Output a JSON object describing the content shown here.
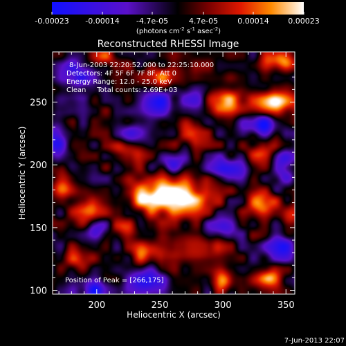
{
  "colorbar": {
    "ticks": [
      "-0.00023",
      "-0.00014",
      "-4.7e-05",
      "4.7e-05",
      "0.00014",
      "0.00023"
    ],
    "unit_main": "(photons cm",
    "unit_exp1": "-2",
    "unit_mid": " s",
    "unit_exp2": "-1",
    "unit_mid2": " asec",
    "unit_exp3": "-2",
    "unit_end": ")",
    "stops": [
      "#1010ff",
      "#5a10c8",
      "#000000",
      "#780000",
      "#e01800",
      "#ff8a00",
      "#ffffff"
    ]
  },
  "chart_data": {
    "type": "heatmap",
    "title": "Reconstructed RHESSI Image",
    "xlabel": "Heliocentric X (arcsec)",
    "ylabel": "Heliocentric Y (arcsec)",
    "xlim": [
      165,
      357
    ],
    "ylim": [
      97,
      290
    ],
    "xticks": [
      200,
      250,
      300,
      350
    ],
    "yticks": [
      100,
      150,
      200,
      250
    ],
    "value_range": [
      -0.00023,
      0.00023
    ],
    "peak": [
      266,
      175
    ],
    "blobs": [
      {
        "x": 266,
        "y": 175,
        "amp": 1.0,
        "sx": 16,
        "sy": 10
      },
      {
        "x": 240,
        "y": 176,
        "amp": 0.75,
        "sx": 12,
        "sy": 9
      },
      {
        "x": 225,
        "y": 210,
        "amp": 0.55,
        "sx": 10,
        "sy": 7
      },
      {
        "x": 192,
        "y": 165,
        "amp": 0.7,
        "sx": 9,
        "sy": 8
      },
      {
        "x": 173,
        "y": 185,
        "amp": 0.55,
        "sx": 6,
        "sy": 9
      },
      {
        "x": 300,
        "y": 252,
        "amp": 0.9,
        "sx": 12,
        "sy": 7
      },
      {
        "x": 340,
        "y": 250,
        "amp": 0.85,
        "sx": 12,
        "sy": 7
      },
      {
        "x": 345,
        "y": 285,
        "amp": 0.85,
        "sx": 9,
        "sy": 6
      },
      {
        "x": 330,
        "y": 170,
        "amp": 0.8,
        "sx": 8,
        "sy": 7
      },
      {
        "x": 330,
        "y": 210,
        "amp": 0.55,
        "sx": 9,
        "sy": 7
      },
      {
        "x": 353,
        "y": 160,
        "amp": 0.55,
        "sx": 5,
        "sy": 7
      },
      {
        "x": 278,
        "y": 135,
        "amp": 0.6,
        "sx": 14,
        "sy": 6
      },
      {
        "x": 240,
        "y": 130,
        "amp": 0.55,
        "sx": 9,
        "sy": 6
      },
      {
        "x": 300,
        "y": 108,
        "amp": 0.9,
        "sx": 6,
        "sy": 5
      },
      {
        "x": 335,
        "y": 110,
        "amp": 0.75,
        "sx": 6,
        "sy": 5
      },
      {
        "x": 222,
        "y": 148,
        "amp": 0.45,
        "sx": 8,
        "sy": 6
      },
      {
        "x": 250,
        "y": 270,
        "amp": 0.6,
        "sx": 14,
        "sy": 7
      },
      {
        "x": 205,
        "y": 285,
        "amp": 0.5,
        "sx": 10,
        "sy": 6
      },
      {
        "x": 275,
        "y": 225,
        "amp": 0.5,
        "sx": 8,
        "sy": 6
      },
      {
        "x": 185,
        "y": 125,
        "amp": 0.5,
        "sx": 8,
        "sy": 6
      },
      {
        "x": 185,
        "y": 270,
        "amp": -0.7,
        "sx": 9,
        "sy": 10
      },
      {
        "x": 168,
        "y": 220,
        "amp": -0.8,
        "sx": 6,
        "sy": 12
      },
      {
        "x": 248,
        "y": 250,
        "amp": -0.75,
        "sx": 10,
        "sy": 8
      },
      {
        "x": 280,
        "y": 252,
        "amp": -0.55,
        "sx": 8,
        "sy": 7
      },
      {
        "x": 330,
        "y": 232,
        "amp": -0.85,
        "sx": 10,
        "sy": 6
      },
      {
        "x": 305,
        "y": 196,
        "amp": -0.7,
        "sx": 10,
        "sy": 7
      },
      {
        "x": 230,
        "y": 225,
        "amp": -0.6,
        "sx": 9,
        "sy": 7
      },
      {
        "x": 348,
        "y": 200,
        "amp": -0.65,
        "sx": 6,
        "sy": 9
      },
      {
        "x": 200,
        "y": 100,
        "amp": -0.8,
        "sx": 10,
        "sy": 6
      },
      {
        "x": 238,
        "y": 108,
        "amp": -0.8,
        "sx": 11,
        "sy": 6
      },
      {
        "x": 345,
        "y": 135,
        "amp": -0.8,
        "sx": 8,
        "sy": 7
      },
      {
        "x": 300,
        "y": 150,
        "amp": -0.55,
        "sx": 8,
        "sy": 6
      },
      {
        "x": 200,
        "y": 150,
        "amp": -0.5,
        "sx": 6,
        "sy": 5
      },
      {
        "x": 260,
        "y": 202,
        "amp": -0.55,
        "sx": 8,
        "sy": 5
      }
    ]
  },
  "info": {
    "line1": "8-Jun-2003 22:20:52.000 to 22:25:10.000",
    "line2": "Detectors: 4F 5F 6F 7F 8F, Att 0",
    "line3": "Energy Range: 12.0 - 25.0 keV",
    "line4": "Clean     Total counts: 2.69E+03",
    "peak": "Position of Peak = [266,175]"
  },
  "footer": {
    "timestamp": "7-Jun-2013 22:07"
  }
}
